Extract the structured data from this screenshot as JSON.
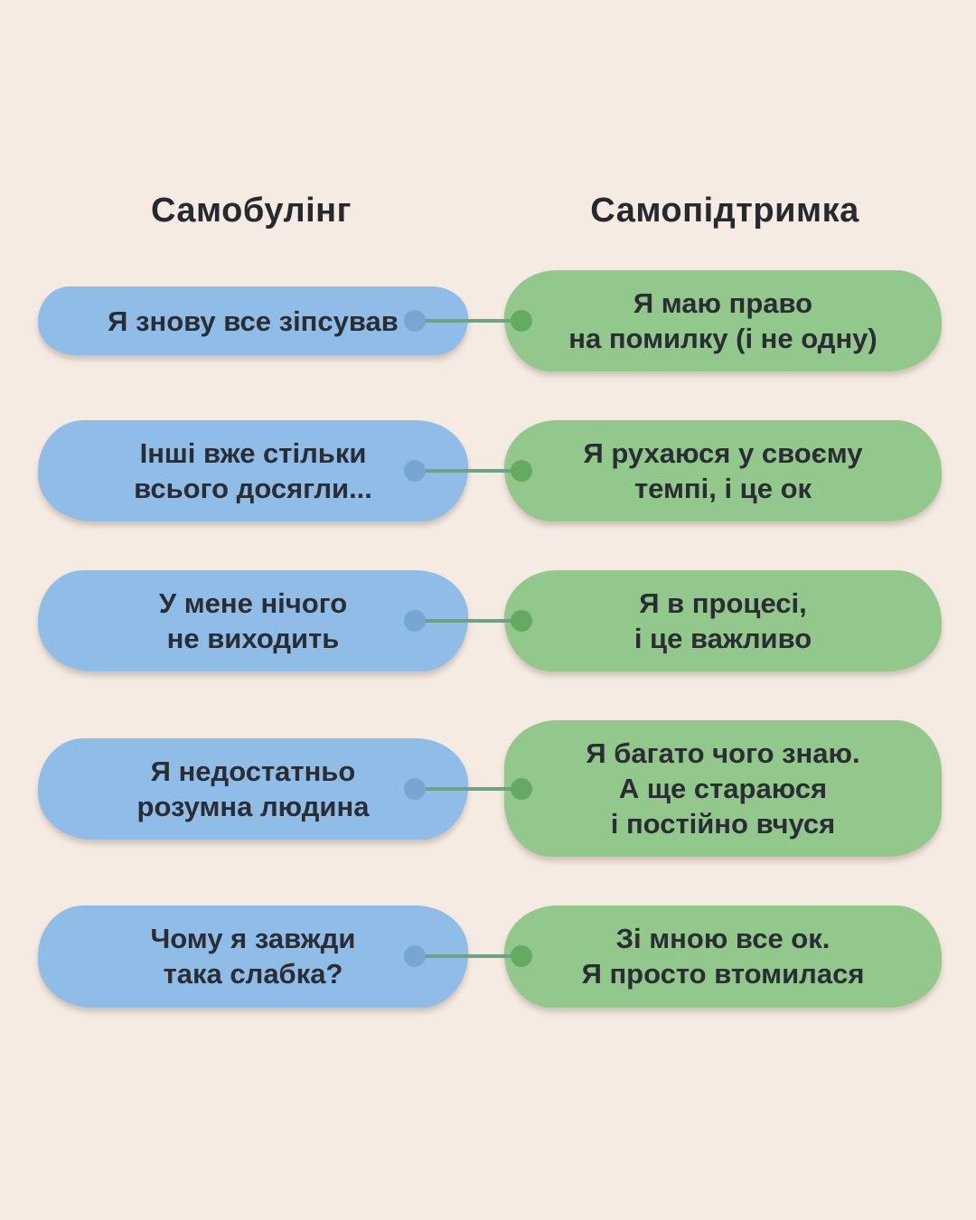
{
  "page": {
    "background_color": "#f5ebe2",
    "language": "uk"
  },
  "colors": {
    "bubble_blue": "#8fbde8",
    "bubble_green": "#93c88d",
    "dot_blue": "#77a6d1",
    "dot_green": "#65aa61",
    "connector_line": "#6da385",
    "text": "#2a2d33"
  },
  "headers": {
    "left": "Самобулінг",
    "right": "Самопідтримка"
  },
  "rows": [
    {
      "left": "Я знову все зіпсував",
      "right": "Я маю право\nна помилку (і не одну)"
    },
    {
      "left": "Інші вже стільки\nвсього досягли...",
      "right": "Я рухаюся у своєму\nтемпі, і це ок"
    },
    {
      "left": "У мене нічого\nне виходить",
      "right": "Я в процесі,\nі це важливо"
    },
    {
      "left": "Я недостатньо\nрозумна людина",
      "right": "Я багато чого знаю.\nА ще стараюся\nі постійно вчуся"
    },
    {
      "left": "Чому я завжди\nтака слабка?",
      "right": "Зі мною все ок.\nЯ просто втомилася"
    }
  ]
}
